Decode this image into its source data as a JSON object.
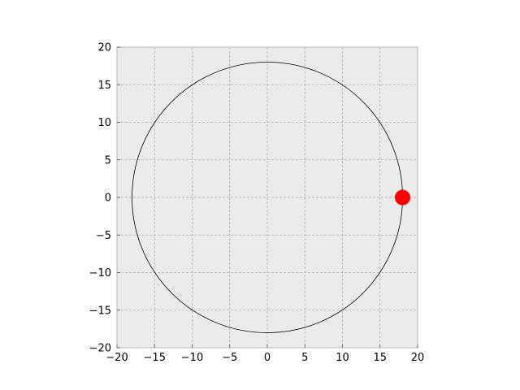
{
  "chart_data": {
    "type": "scatter",
    "title": "",
    "xlabel": "",
    "ylabel": "",
    "xlim": [
      -20,
      20
    ],
    "ylim": [
      -20,
      20
    ],
    "xticks": [
      -20,
      -15,
      -10,
      -5,
      0,
      5,
      10,
      15,
      20
    ],
    "yticks": [
      -20,
      -15,
      -10,
      -5,
      0,
      5,
      10,
      15,
      20
    ],
    "xtick_labels": [
      "−20",
      "−15",
      "−10",
      "−5",
      "0",
      "5",
      "10",
      "15",
      "20"
    ],
    "ytick_labels": [
      "−20",
      "−15",
      "−10",
      "−5",
      "0",
      "5",
      "10",
      "15",
      "20"
    ],
    "grid": true,
    "background_color": "#ebebeb",
    "grid_color": "#b0b0b0",
    "circle": {
      "center": [
        0,
        0
      ],
      "radius": 18,
      "color": "#000000"
    },
    "points": [
      {
        "x": 18,
        "y": 0,
        "color": "#ff0000"
      }
    ]
  }
}
